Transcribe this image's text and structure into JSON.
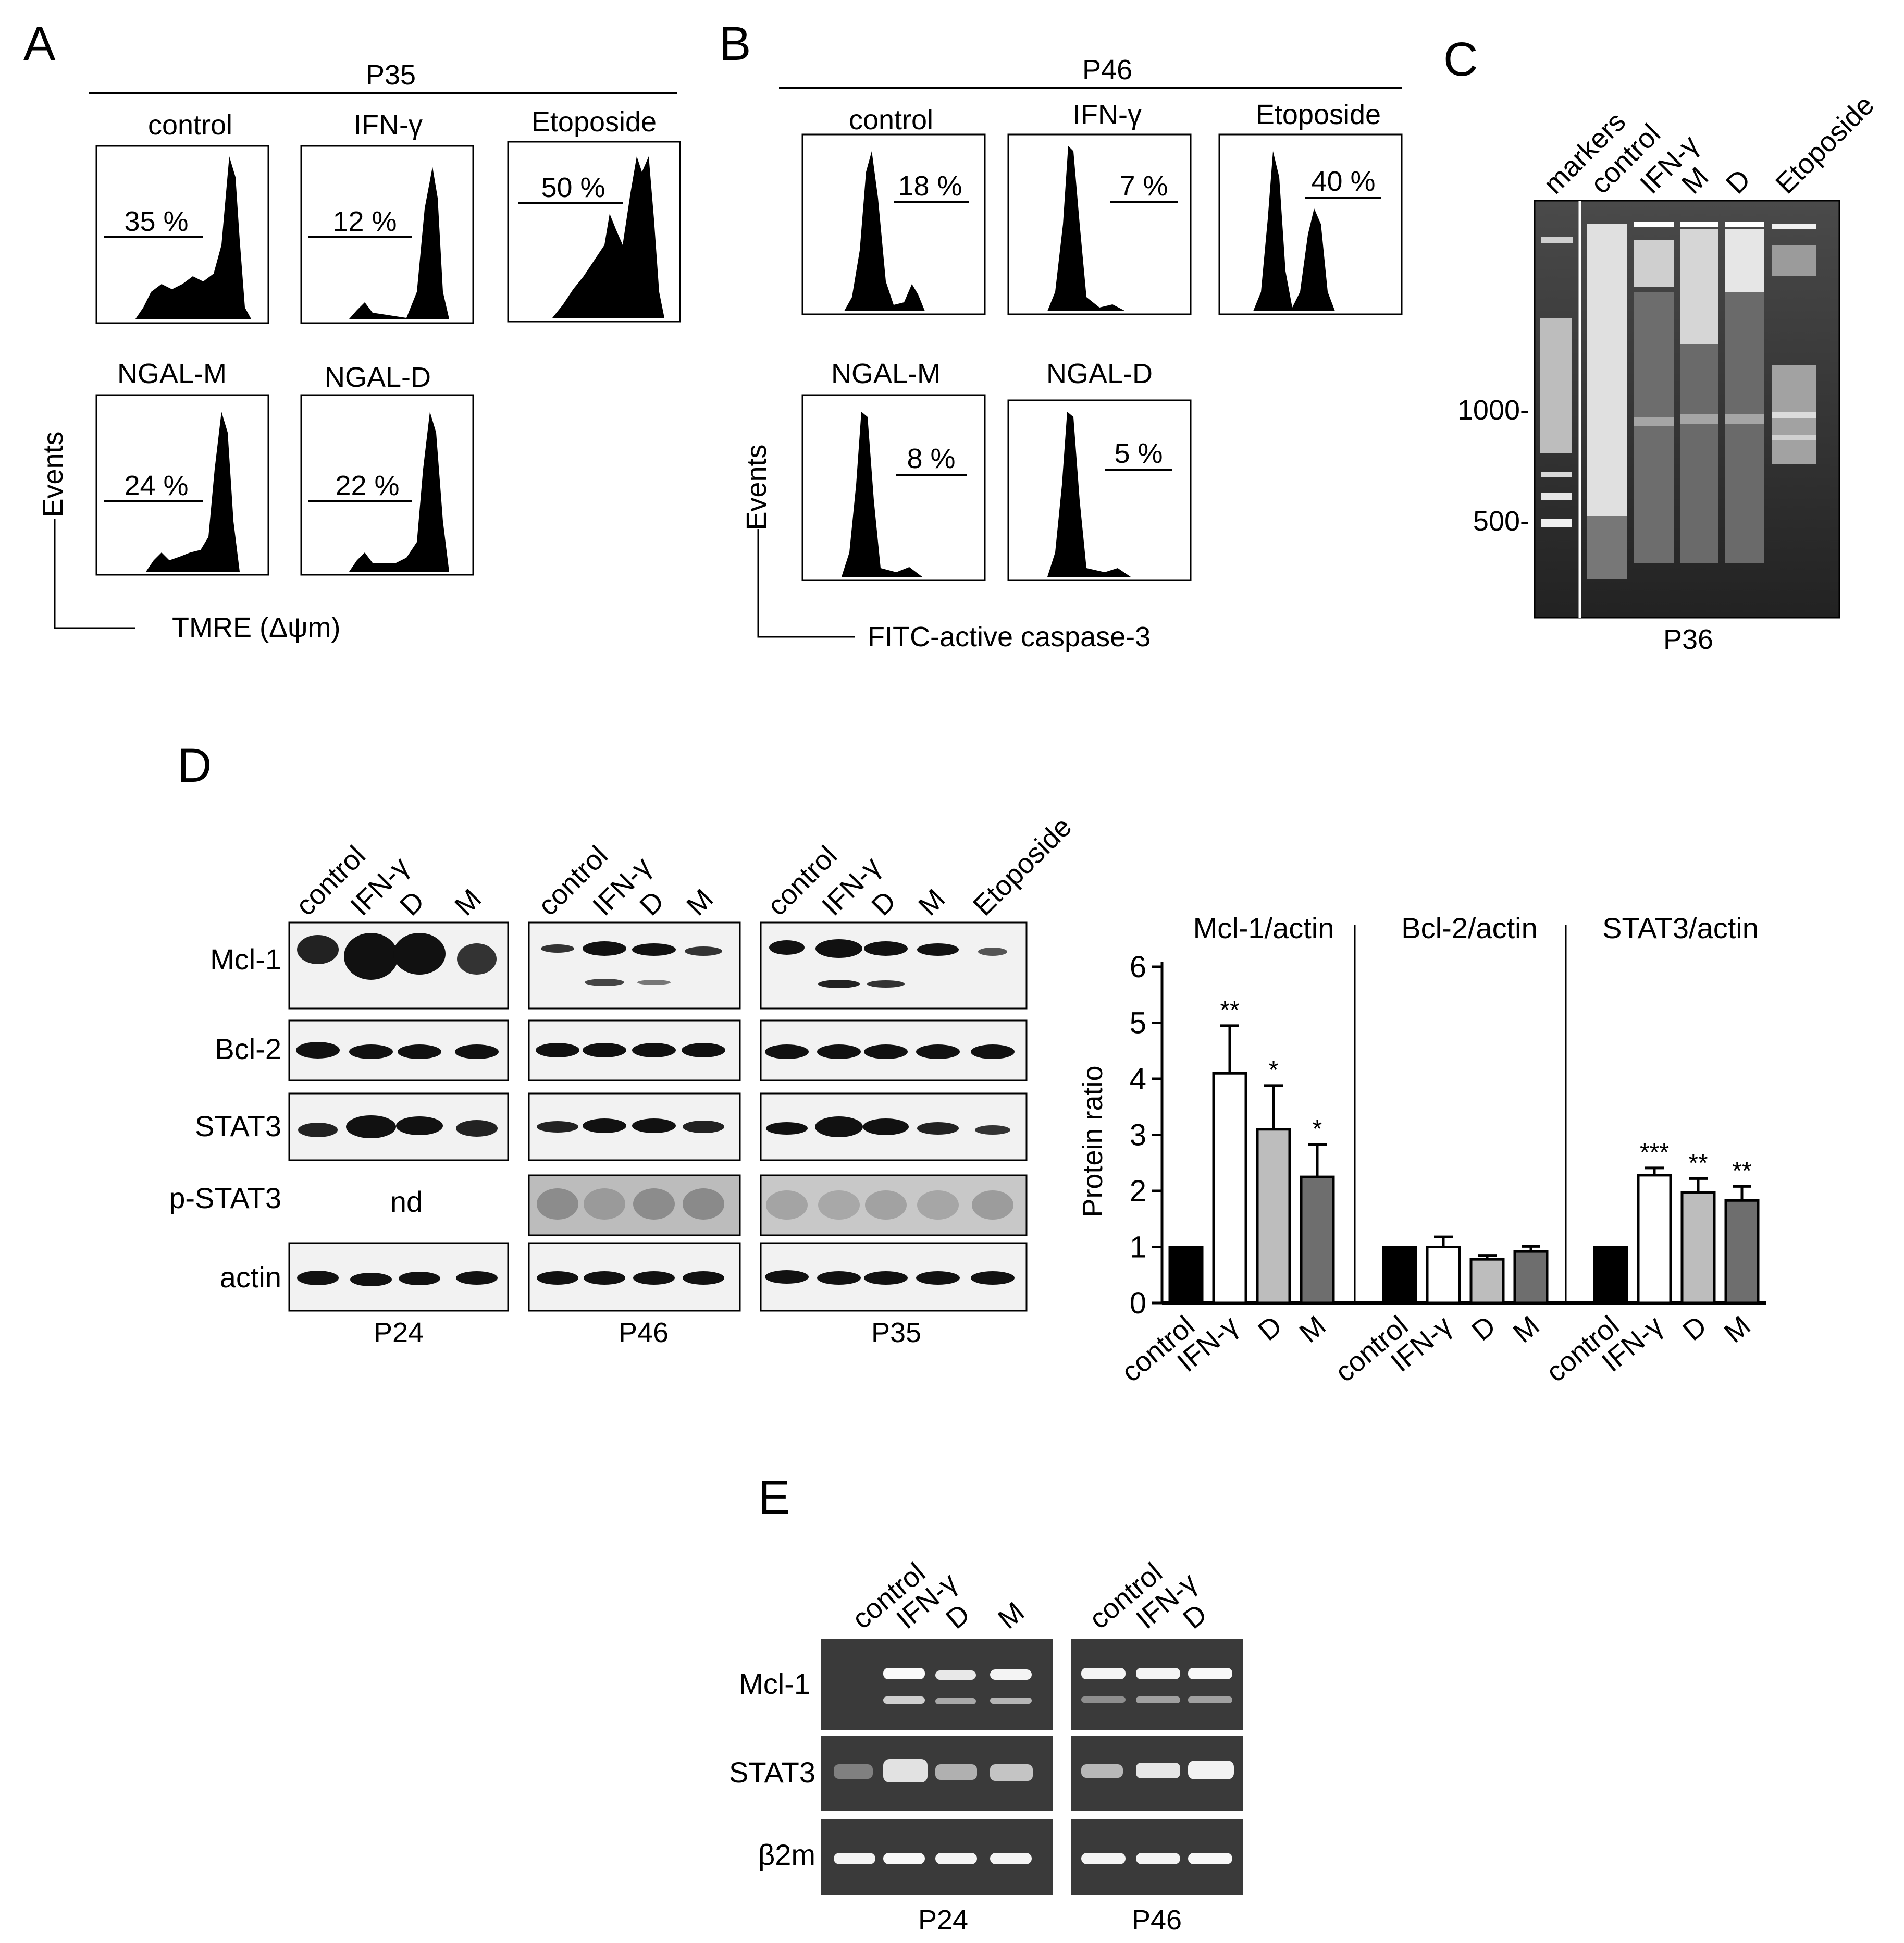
{
  "panels": {
    "A": {
      "letter": "A",
      "patient": "P35",
      "y_axis_label": "Events",
      "x_axis_label": "TMRE (Δψm)",
      "histograms": [
        {
          "name": "control",
          "percent": "35 %"
        },
        {
          "name": "IFN-γ",
          "percent": "12 %"
        },
        {
          "name": "Etoposide",
          "percent": "50 %"
        },
        {
          "name": "NGAL-M",
          "percent": "24 %"
        },
        {
          "name": "NGAL-D",
          "percent": "22 %"
        }
      ]
    },
    "B": {
      "letter": "B",
      "patient": "P46",
      "y_axis_label": "Events",
      "x_axis_label": "FITC-active caspase-3",
      "histograms": [
        {
          "name": "control",
          "percent": "18 %"
        },
        {
          "name": "IFN-γ",
          "percent": "7 %"
        },
        {
          "name": "Etoposide",
          "percent": "40 %"
        },
        {
          "name": "NGAL-M",
          "percent": "8 %"
        },
        {
          "name": "NGAL-D",
          "percent": "5 %"
        }
      ]
    },
    "C": {
      "letter": "C",
      "lanes": [
        "markers",
        "control",
        "IFN-γ",
        "M",
        "D",
        "Etoposide"
      ],
      "size_markers": [
        "1000-",
        "500-"
      ],
      "patient": "P36"
    },
    "D": {
      "letter": "D",
      "blots": [
        {
          "patient": "P24",
          "lanes": [
            "control",
            "IFN-γ",
            "D",
            "M"
          ],
          "pstat3_note": "nd"
        },
        {
          "patient": "P46",
          "lanes": [
            "control",
            "IFN-γ",
            "D",
            "M"
          ]
        },
        {
          "patient": "P35",
          "lanes": [
            "control",
            "IFN-γ",
            "D",
            "M",
            "Etoposide"
          ]
        }
      ],
      "rows": [
        "Mcl-1",
        "Bcl-2",
        "STAT3",
        "p-STAT3",
        "actin"
      ]
    },
    "E": {
      "letter": "E",
      "gels": [
        {
          "patient": "P24",
          "lanes": [
            "control",
            "IFN-γ",
            "D",
            "M"
          ]
        },
        {
          "patient": "P46",
          "lanes": [
            "control",
            "IFN-γ",
            "D"
          ]
        }
      ],
      "rows": [
        "Mcl-1",
        "STAT3",
        "β2m"
      ]
    }
  },
  "chart_data": {
    "type": "bar",
    "ylabel": "Protein ratio",
    "ylim": [
      0,
      6
    ],
    "yticks": [
      0,
      1,
      2,
      3,
      4,
      5,
      6
    ],
    "categories": [
      "control",
      "IFN-γ",
      "D",
      "M"
    ],
    "groups": [
      {
        "title": "Mcl-1/actin",
        "values": [
          1,
          4.1,
          3.1,
          2.25
        ],
        "errors": [
          0,
          0.85,
          0.78,
          0.58
        ],
        "significance": [
          "",
          "**",
          "*",
          "*"
        ]
      },
      {
        "title": "Bcl-2/actin",
        "values": [
          1,
          1.0,
          0.78,
          0.92
        ],
        "errors": [
          0,
          0.18,
          0.07,
          0.09
        ],
        "significance": [
          "",
          "",
          "",
          ""
        ]
      },
      {
        "title": "STAT3/actin",
        "values": [
          1,
          2.28,
          1.97,
          1.83
        ],
        "errors": [
          0,
          0.13,
          0.25,
          0.25
        ],
        "significance": [
          "",
          "***",
          "**",
          "**"
        ]
      }
    ],
    "bar_colors": [
      "#000000",
      "#ffffff",
      "#bdbdbd",
      "#6e6e6e"
    ]
  }
}
